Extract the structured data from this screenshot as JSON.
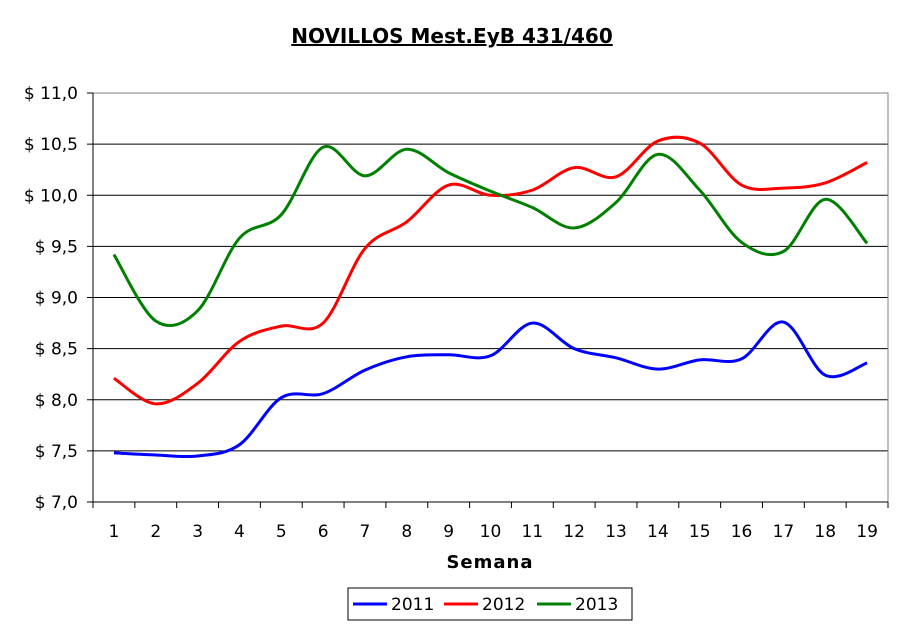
{
  "chart_data": {
    "type": "line",
    "title": "NOVILLOS Mest.EyB 431/460",
    "xlabel": "Semana",
    "ylabel": "",
    "categories": [
      "1",
      "2",
      "3",
      "4",
      "5",
      "6",
      "7",
      "8",
      "9",
      "10",
      "11",
      "12",
      "13",
      "14",
      "15",
      "16",
      "17",
      "18",
      "19"
    ],
    "ylim": [
      7.0,
      11.0
    ],
    "y_ticks": [
      7.0,
      7.5,
      8.0,
      8.5,
      9.0,
      9.5,
      10.0,
      10.5,
      11.0
    ],
    "y_tick_labels": [
      "$ 7,0",
      "$ 7,5",
      "$ 8,0",
      "$ 8,5",
      "$ 9,0",
      "$ 9,5",
      "$ 10,0",
      "$ 10,5",
      "$ 11,0"
    ],
    "grid": true,
    "legend_position": "bottom",
    "series": [
      {
        "name": "2011",
        "color": "#0000ff",
        "values": [
          7.48,
          7.46,
          7.45,
          7.56,
          8.02,
          8.06,
          8.29,
          8.42,
          8.44,
          8.43,
          8.75,
          8.5,
          8.41,
          8.3,
          8.39,
          8.4,
          8.76,
          8.24,
          8.36
        ]
      },
      {
        "name": "2012",
        "color": "#ff0000",
        "values": [
          8.21,
          7.96,
          8.16,
          8.57,
          8.72,
          8.75,
          9.48,
          9.74,
          10.1,
          10.0,
          10.05,
          10.27,
          10.18,
          10.53,
          10.51,
          10.1,
          10.07,
          10.12,
          10.32
        ]
      },
      {
        "name": "2013",
        "color": "#008000",
        "values": [
          9.42,
          8.77,
          8.87,
          9.58,
          9.81,
          10.47,
          10.19,
          10.45,
          10.22,
          10.04,
          9.88,
          9.68,
          9.93,
          10.4,
          10.05,
          9.54,
          9.45,
          9.96,
          9.53
        ]
      }
    ]
  }
}
